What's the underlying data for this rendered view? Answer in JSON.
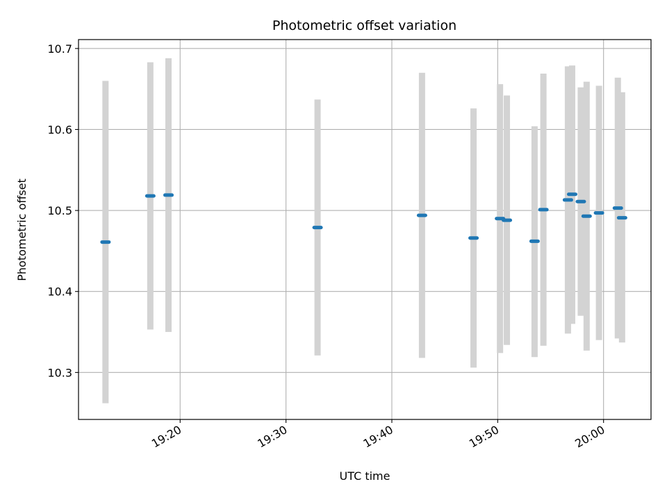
{
  "chart_data": {
    "type": "scatter",
    "title": "Photometric offset variation",
    "xlabel": "UTC time",
    "ylabel": "Photometric offset",
    "xlim": [
      "19:10:24",
      "20:04:29"
    ],
    "ylim": [
      10.242,
      10.711
    ],
    "xticks": [
      "19:20",
      "19:30",
      "19:40",
      "19:50",
      "20:00"
    ],
    "yticks": [
      "10.3",
      "10.4",
      "10.5",
      "10.6",
      "10.7"
    ],
    "grid": true,
    "colors": {
      "points": "#1f77b4",
      "errorbars": "#d3d3d3",
      "grid": "#b0b0b0"
    },
    "points": [
      {
        "t": "19:12:57",
        "y": 10.461,
        "ylow": 10.262,
        "yhigh": 10.66
      },
      {
        "t": "19:17:11",
        "y": 10.518,
        "ylow": 10.353,
        "yhigh": 10.683
      },
      {
        "t": "19:18:54",
        "y": 10.519,
        "ylow": 10.35,
        "yhigh": 10.688
      },
      {
        "t": "19:32:59",
        "y": 10.479,
        "ylow": 10.321,
        "yhigh": 10.637
      },
      {
        "t": "19:42:51",
        "y": 10.494,
        "ylow": 10.318,
        "yhigh": 10.67
      },
      {
        "t": "19:47:43",
        "y": 10.466,
        "ylow": 10.306,
        "yhigh": 10.626
      },
      {
        "t": "19:50:13",
        "y": 10.49,
        "ylow": 10.324,
        "yhigh": 10.656
      },
      {
        "t": "19:50:52",
        "y": 10.488,
        "ylow": 10.334,
        "yhigh": 10.642
      },
      {
        "t": "19:53:29",
        "y": 10.462,
        "ylow": 10.319,
        "yhigh": 10.604
      },
      {
        "t": "19:54:19",
        "y": 10.501,
        "ylow": 10.333,
        "yhigh": 10.669
      },
      {
        "t": "19:56:38",
        "y": 10.513,
        "ylow": 10.348,
        "yhigh": 10.678
      },
      {
        "t": "19:57:02",
        "y": 10.52,
        "ylow": 10.36,
        "yhigh": 10.679
      },
      {
        "t": "19:57:51",
        "y": 10.511,
        "ylow": 10.37,
        "yhigh": 10.652
      },
      {
        "t": "19:58:24",
        "y": 10.493,
        "ylow": 10.327,
        "yhigh": 10.659
      },
      {
        "t": "19:59:34",
        "y": 10.497,
        "ylow": 10.34,
        "yhigh": 10.654
      },
      {
        "t": "20:01:21",
        "y": 10.503,
        "ylow": 10.342,
        "yhigh": 10.664
      },
      {
        "t": "20:01:45",
        "y": 10.491,
        "ylow": 10.337,
        "yhigh": 10.646
      }
    ]
  }
}
